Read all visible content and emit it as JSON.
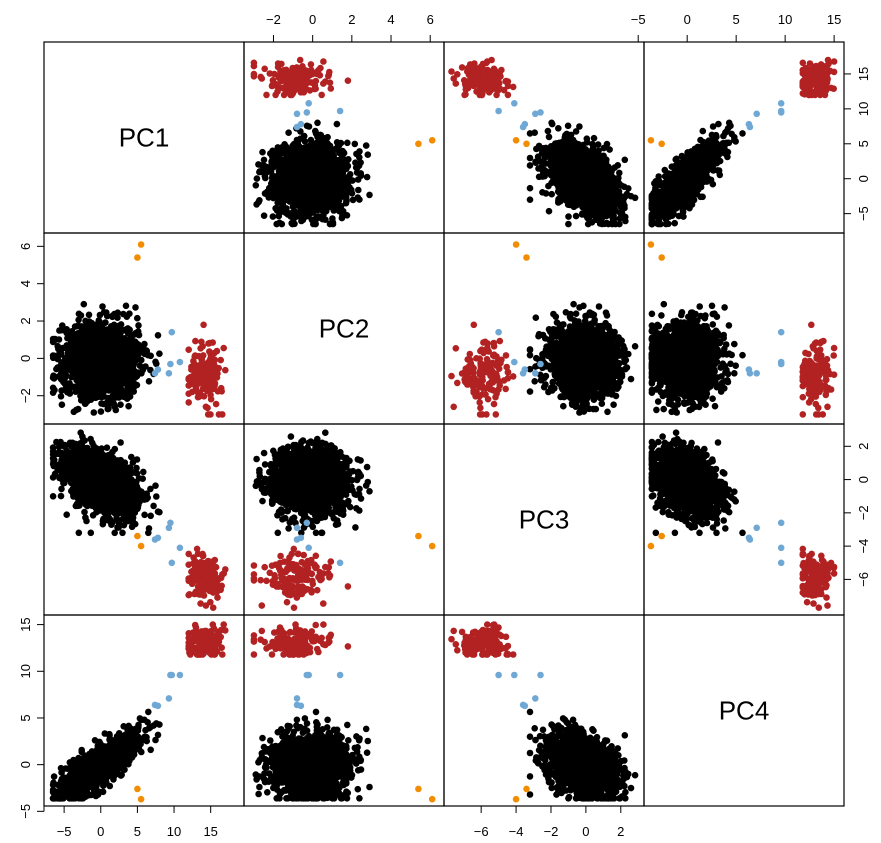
{
  "chart_data": {
    "type": "scatter",
    "variables": [
      "PC1",
      "PC2",
      "PC3",
      "PC4"
    ],
    "ranges": {
      "PC1": [
        -7.2,
        19.0
      ],
      "PC2": [
        -3.3,
        6.5
      ],
      "PC3": [
        -7.9,
        3.1
      ],
      "PC4": [
        -4.0,
        15.6
      ]
    },
    "ticks": {
      "PC1": [
        -5,
        0,
        5,
        10,
        15
      ],
      "PC2": [
        -2,
        0,
        2,
        4,
        6
      ],
      "PC3": [
        -6,
        -4,
        -2,
        0,
        2
      ],
      "PC4": [
        -5,
        0,
        5,
        10,
        15
      ]
    },
    "groups": [
      {
        "color": "#000000",
        "generated": true,
        "count": 1400,
        "center": {
          "PC1": 0.0,
          "PC2": -0.1,
          "PC3": -0.5,
          "PC4": 0.2
        },
        "spread": {
          "PC1": 2.6,
          "PC2": 1.0,
          "PC3": 1.0,
          "PC4": 1.5
        },
        "limits": {
          "PC1": [
            -6.5,
            8.0
          ],
          "PC2": [
            -2.9,
            3.3
          ],
          "PC3": [
            -3.2,
            2.9
          ],
          "PC4": [
            -3.6,
            6.0
          ]
        }
      },
      {
        "color": "#B22222",
        "generated": true,
        "count": 140,
        "center": {
          "PC1": 14.2,
          "PC2": -0.8,
          "PC3": -5.8,
          "PC4": 13.2
        },
        "spread": {
          "PC1": 1.2,
          "PC2": 0.9,
          "PC3": 0.7,
          "PC4": 0.7
        },
        "limits": {
          "PC1": [
            12.0,
            18.0
          ],
          "PC2": [
            -3.0,
            1.8
          ],
          "PC3": [
            -7.7,
            -4.1
          ],
          "PC4": [
            11.8,
            15.0
          ]
        }
      },
      {
        "color": "#6FA8D4",
        "points": [
          {
            "PC1": 9.5,
            "PC2": -0.3,
            "PC3": -2.6,
            "PC4": 9.6
          },
          {
            "PC1": 9.7,
            "PC2": 1.4,
            "PC3": -5.0,
            "PC4": 9.6
          },
          {
            "PC1": 10.8,
            "PC2": -0.2,
            "PC3": -4.1,
            "PC4": 9.6
          },
          {
            "PC1": 7.4,
            "PC2": -0.8,
            "PC3": -3.6,
            "PC4": 6.4
          },
          {
            "PC1": 9.3,
            "PC2": -0.8,
            "PC3": -2.9,
            "PC4": 7.1
          },
          {
            "PC1": 7.8,
            "PC2": -0.6,
            "PC3": -3.5,
            "PC4": 6.3
          }
        ]
      },
      {
        "color": "#F28C00",
        "points": [
          {
            "PC1": 5.5,
            "PC2": 6.1,
            "PC3": -4.0,
            "PC4": -3.7
          },
          {
            "PC1": 5.0,
            "PC2": 5.4,
            "PC3": -3.4,
            "PC4": -2.6
          }
        ]
      }
    ]
  }
}
